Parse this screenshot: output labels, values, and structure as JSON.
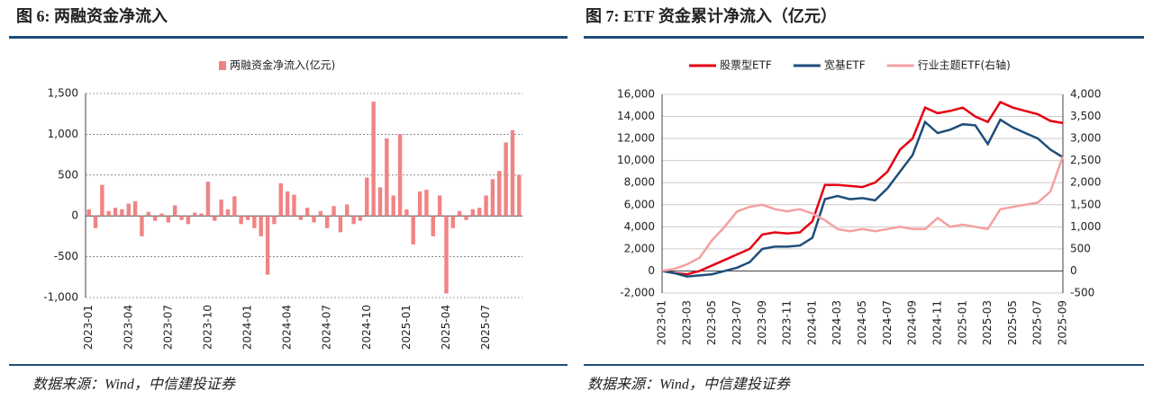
{
  "chart_data": [
    {
      "type": "bar",
      "title": "图 6: 两融资金净流入",
      "source": "数据来源：Wind，中信建投证券",
      "categories": [
        "2023-01",
        null,
        null,
        null,
        null,
        null,
        "2023-04",
        null,
        null,
        null,
        null,
        null,
        "2023-07",
        null,
        null,
        null,
        null,
        null,
        "2023-10",
        null,
        null,
        null,
        null,
        null,
        "2024-01",
        null,
        null,
        null,
        null,
        null,
        "2024-04",
        null,
        null,
        null,
        null,
        null,
        "2024-07",
        null,
        null,
        null,
        null,
        null,
        "2024-10",
        null,
        null,
        null,
        null,
        null,
        "2025-01",
        null,
        null,
        null,
        null,
        null,
        "2025-04",
        null,
        null,
        null,
        null,
        null,
        "2025-07",
        null,
        null,
        null,
        null,
        null
      ],
      "series": [
        {
          "name": "两融资金净流入(亿元)",
          "color": "#f08484",
          "values": [
            80,
            -150,
            380,
            60,
            100,
            80,
            150,
            180,
            -250,
            50,
            -60,
            30,
            -80,
            130,
            -50,
            -100,
            40,
            30,
            420,
            -60,
            200,
            80,
            240,
            -100,
            -50,
            -150,
            -250,
            -720,
            -100,
            400,
            300,
            260,
            -50,
            100,
            -80,
            60,
            -150,
            120,
            -200,
            140,
            -100,
            -60,
            470,
            1400,
            350,
            950,
            250,
            1000,
            80,
            -350,
            300,
            320,
            -250,
            250,
            -950,
            -150,
            60,
            -50,
            80,
            100,
            250,
            450,
            550,
            900,
            1050,
            500
          ]
        }
      ],
      "ylim": [
        -1000,
        1500
      ],
      "yticks": [
        {
          "value": -1000,
          "label": "-1,000"
        },
        -500,
        0,
        500,
        {
          "value": 1000,
          "label": "1,000"
        },
        {
          "value": 1500,
          "label": "1,500"
        }
      ],
      "grid": true
    },
    {
      "type": "line",
      "title": "图 7: ETF 资金累计净流入（亿元）",
      "source": "数据来源：Wind，中信建投证券",
      "categories": [
        "2023-01",
        null,
        "2023-03",
        null,
        "2023-05",
        null,
        "2023-07",
        null,
        "2023-09",
        null,
        "2023-11",
        null,
        "2024-01",
        null,
        "2024-03",
        null,
        "2024-05",
        null,
        "2024-07",
        null,
        "2024-09",
        null,
        "2024-11",
        null,
        "2025-01",
        null,
        "2025-03",
        null,
        "2025-05",
        null,
        "2025-07",
        null,
        "2025-09"
      ],
      "series": [
        {
          "name": "股票型ETF",
          "color": "#e60012",
          "values": [
            0,
            -200,
            -300,
            0,
            500,
            1000,
            1500,
            2000,
            3300,
            3500,
            3400,
            3500,
            4500,
            7800,
            7800,
            7700,
            7600,
            8000,
            9000,
            11000,
            12000,
            14800,
            14300,
            14500,
            14800,
            14000,
            13500,
            15300,
            14800,
            14500,
            14200,
            13600,
            13400
          ]
        },
        {
          "name": "宽基ETF",
          "color": "#1f4e79",
          "values": [
            0,
            -200,
            -500,
            -400,
            -300,
            0,
            300,
            800,
            2000,
            2200,
            2200,
            2300,
            3000,
            6500,
            6800,
            6500,
            6600,
            6400,
            7500,
            9000,
            10500,
            13500,
            12500,
            12800,
            13300,
            13200,
            11500,
            13700,
            13000,
            12500,
            12000,
            11000,
            10300
          ]
        },
        {
          "name": "行业主题ETF(右轴)",
          "color": "#f4a0a0",
          "axis": "y2",
          "values": [
            0,
            50,
            150,
            300,
            700,
            1000,
            1350,
            1450,
            1500,
            1400,
            1350,
            1400,
            1300,
            1150,
            950,
            900,
            950,
            900,
            950,
            1000,
            950,
            950,
            1200,
            1000,
            1050,
            1000,
            950,
            1400,
            1450,
            1500,
            1550,
            1800,
            2600
          ]
        }
      ],
      "ylim": [
        -2000,
        16000
      ],
      "yticks": [
        {
          "value": -2000,
          "label": "-2,000"
        },
        0,
        {
          "value": 2000,
          "label": "2,000"
        },
        {
          "value": 4000,
          "label": "4,000"
        },
        {
          "value": 6000,
          "label": "6,000"
        },
        {
          "value": 8000,
          "label": "8,000"
        },
        {
          "value": 10000,
          "label": "10,000"
        },
        {
          "value": 12000,
          "label": "12,000"
        },
        {
          "value": 14000,
          "label": "14,000"
        },
        {
          "value": 16000,
          "label": "16,000"
        }
      ],
      "y2lim": [
        -500,
        4000
      ],
      "y2ticks": [
        -500,
        0,
        500,
        {
          "value": 1000,
          "label": "1,000"
        },
        {
          "value": 1500,
          "label": "1,500"
        },
        {
          "value": 2000,
          "label": "2,000"
        },
        {
          "value": 2500,
          "label": "2,500"
        },
        {
          "value": 3000,
          "label": "3,000"
        },
        {
          "value": 3500,
          "label": "3,500"
        },
        {
          "value": 4000,
          "label": "4,000"
        }
      ],
      "grid": true
    }
  ]
}
